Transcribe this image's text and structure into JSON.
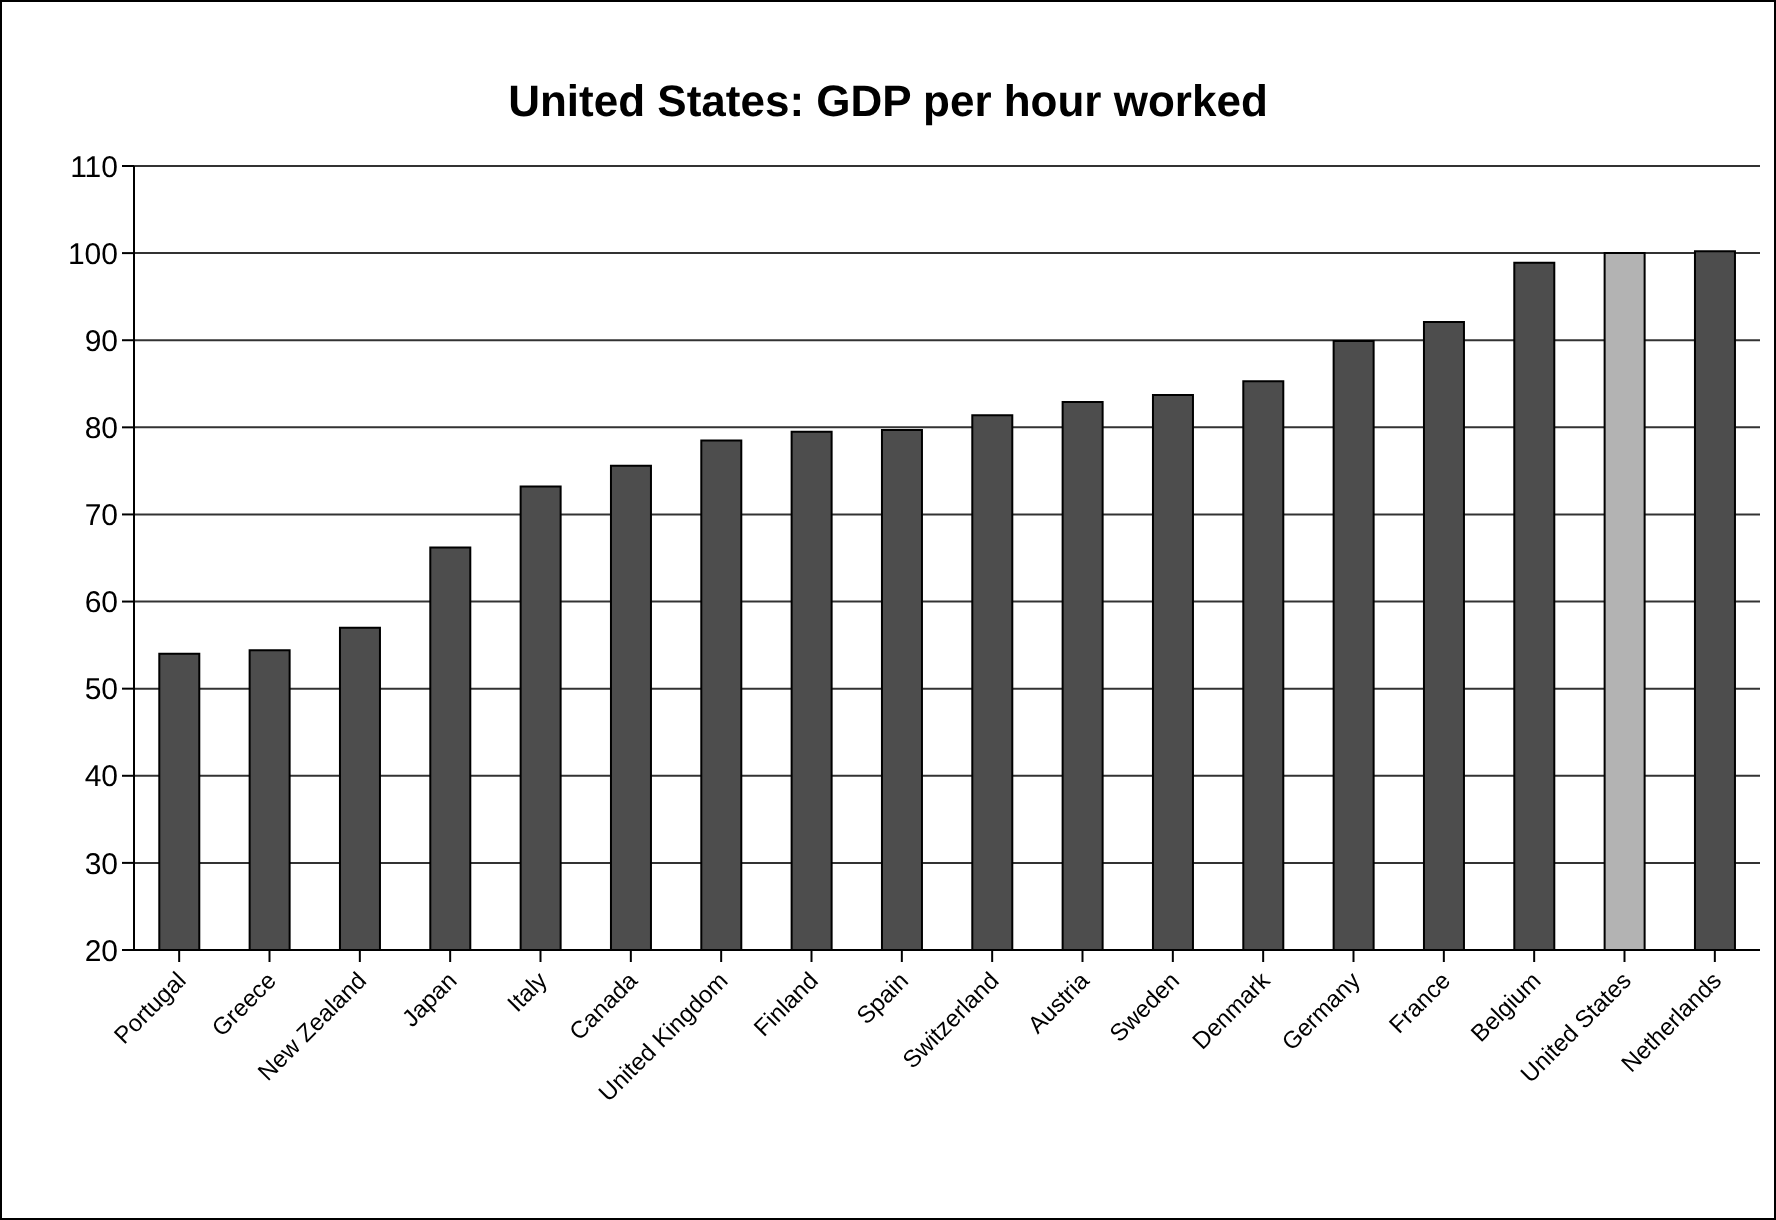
{
  "chart_data": {
    "type": "bar",
    "title": "United States: GDP per hour worked",
    "categories": [
      "Portugal",
      "Greece",
      "New Zealand",
      "Japan",
      "Italy",
      "Canada",
      "United Kingdom",
      "Finland",
      "Spain",
      "Switzerland",
      "Austria",
      "Sweden",
      "Denmark",
      "Germany",
      "France",
      "Belgium",
      "United States",
      "Netherlands"
    ],
    "values": [
      54.0,
      54.4,
      57.0,
      66.2,
      73.2,
      75.6,
      78.5,
      79.5,
      79.7,
      81.4,
      82.9,
      83.7,
      85.3,
      89.9,
      92.1,
      98.9,
      100,
      100.2
    ],
    "colors": [
      "#4d4d4d",
      "#4d4d4d",
      "#4d4d4d",
      "#4d4d4d",
      "#4d4d4d",
      "#4d4d4d",
      "#4d4d4d",
      "#4d4d4d",
      "#4d4d4d",
      "#4d4d4d",
      "#4d4d4d",
      "#4d4d4d",
      "#4d4d4d",
      "#4d4d4d",
      "#4d4d4d",
      "#4d4d4d",
      "#b3b3b3",
      "#4d4d4d"
    ],
    "ylim": [
      20,
      110
    ],
    "yticks": [
      20,
      30,
      40,
      50,
      60,
      70,
      80,
      90,
      100,
      110
    ],
    "grid": "y",
    "legend": false
  }
}
